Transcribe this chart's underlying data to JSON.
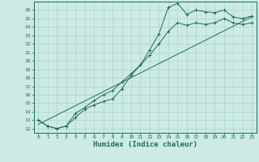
{
  "bg_color": "#cdeae4",
  "grid_color": "#a8d5ce",
  "line_color": "#1f6b5e",
  "marker": "+",
  "xlabel": "Humidex (Indice chaleur)",
  "ylim": [
    11.5,
    27.0
  ],
  "xlim": [
    -0.5,
    23.5
  ],
  "yticks": [
    12,
    13,
    14,
    15,
    16,
    17,
    18,
    19,
    20,
    21,
    22,
    23,
    24,
    25,
    26
  ],
  "xticks": [
    0,
    1,
    2,
    3,
    4,
    5,
    6,
    7,
    8,
    9,
    10,
    11,
    12,
    13,
    14,
    15,
    16,
    17,
    18,
    19,
    20,
    21,
    22,
    23
  ],
  "series1_x": [
    0,
    1,
    2,
    3,
    4,
    5,
    6,
    7,
    8,
    9,
    10,
    11,
    12,
    13,
    14,
    15,
    16,
    17,
    18,
    19,
    20,
    21,
    22,
    23
  ],
  "series1_y": [
    13.0,
    12.3,
    12.0,
    12.3,
    13.3,
    14.3,
    14.8,
    15.2,
    15.5,
    16.7,
    18.3,
    19.5,
    21.3,
    23.2,
    26.3,
    26.8,
    25.5,
    26.0,
    25.8,
    25.7,
    26.0,
    25.2,
    25.0,
    25.3
  ],
  "series2_x": [
    0,
    1,
    2,
    3,
    4,
    5,
    6,
    7,
    8,
    9,
    10,
    11,
    12,
    13,
    14,
    15,
    16,
    17,
    18,
    19,
    20,
    21,
    22,
    23
  ],
  "series2_y": [
    13.0,
    12.3,
    12.0,
    12.3,
    13.8,
    14.5,
    15.3,
    16.0,
    16.5,
    17.5,
    18.5,
    19.5,
    20.7,
    22.0,
    23.5,
    24.5,
    24.2,
    24.5,
    24.3,
    24.5,
    25.0,
    24.5,
    24.3,
    24.5
  ],
  "series3_x": [
    0,
    23
  ],
  "series3_y": [
    12.5,
    25.2
  ],
  "tick_fontsize": 4.5,
  "xlabel_fontsize": 6.5
}
